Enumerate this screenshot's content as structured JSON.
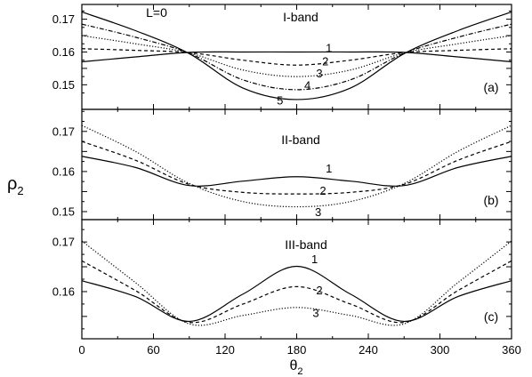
{
  "chart_data": {
    "type": "line",
    "x_axis": {
      "label": "θ",
      "label_subscript": "2",
      "range": [
        0,
        360
      ],
      "ticks": [
        0,
        60,
        120,
        180,
        240,
        300,
        360
      ],
      "tick_labels": [
        "0",
        "60",
        "120",
        "180",
        "240",
        "300",
        "360"
      ]
    },
    "y_axis": {
      "label": "ρ",
      "label_subscript": "2"
    },
    "panels": [
      {
        "panel_label": "(a)",
        "title": "I-band",
        "annotation": "L=0",
        "ylim": [
          0.1425,
          0.1745
        ],
        "y_ticks": [
          0.15,
          0.155,
          0.16,
          0.165,
          0.17
        ],
        "y_tick_labels": [
          "0.15",
          "",
          "0.16",
          "",
          "0.17"
        ],
        "series": [
          {
            "label": "1",
            "style": "solid",
            "x": [
              0,
              45,
              90,
              135,
              180,
              225,
              270,
              315,
              360
            ],
            "y": [
              0.157,
              0.1585,
              0.1599,
              0.16,
              0.16,
              0.16,
              0.1599,
              0.1585,
              0.157
            ]
          },
          {
            "label": "2",
            "style": "dashed",
            "x": [
              0,
              45,
              90,
              135,
              180,
              225,
              270,
              315,
              360
            ],
            "y": [
              0.161,
              0.1605,
              0.1598,
              0.1575,
              0.156,
              0.1575,
              0.1598,
              0.1605,
              0.161
            ]
          },
          {
            "label": "3",
            "style": "dotted",
            "x": [
              0,
              45,
              90,
              135,
              180,
              225,
              270,
              315,
              360
            ],
            "y": [
              0.165,
              0.1625,
              0.1597,
              0.1545,
              0.1525,
              0.1545,
              0.1597,
              0.1625,
              0.165
            ]
          },
          {
            "label": "4",
            "style": "dashdot",
            "x": [
              0,
              45,
              90,
              135,
              180,
              225,
              270,
              315,
              360
            ],
            "y": [
              0.1685,
              0.1645,
              0.1596,
              0.1515,
              0.1485,
              0.1515,
              0.1596,
              0.1645,
              0.1685
            ]
          },
          {
            "label": "5",
            "style": "solid",
            "x": [
              0,
              45,
              90,
              135,
              180,
              225,
              270,
              315,
              360
            ],
            "y": [
              0.1722,
              0.1665,
              0.1595,
              0.149,
              0.1455,
              0.149,
              0.1595,
              0.1665,
              0.1722
            ]
          }
        ],
        "curve_label_at": [
          {
            "label": "1",
            "x": 207,
            "y": 0.1612
          },
          {
            "label": "2",
            "x": 204,
            "y": 0.1572
          },
          {
            "label": "3",
            "x": 199,
            "y": 0.1535
          },
          {
            "label": "4",
            "x": 189,
            "y": 0.1498
          },
          {
            "label": "5",
            "x": 166,
            "y": 0.1452
          }
        ]
      },
      {
        "panel_label": "(b)",
        "title": "II-band",
        "ylim": [
          0.148,
          0.1755
        ],
        "y_ticks": [
          0.15,
          0.155,
          0.16,
          0.165,
          0.17
        ],
        "y_tick_labels": [
          "0.15",
          "",
          "0.16",
          "",
          "0.17"
        ],
        "series": [
          {
            "label": "1",
            "style": "solid",
            "x": [
              0,
              45,
              90,
              135,
              180,
              225,
              270,
              315,
              360
            ],
            "y": [
              0.1638,
              0.161,
              0.1565,
              0.1576,
              0.1587,
              0.1576,
              0.1565,
              0.161,
              0.1638
            ]
          },
          {
            "label": "2",
            "style": "dashed",
            "x": [
              0,
              45,
              90,
              135,
              180,
              225,
              270,
              315,
              360
            ],
            "y": [
              0.1675,
              0.1628,
              0.1568,
              0.1548,
              0.1544,
              0.1548,
              0.1568,
              0.1628,
              0.1675
            ]
          },
          {
            "label": "3",
            "style": "dotted",
            "x": [
              0,
              45,
              90,
              135,
              180,
              225,
              270,
              315,
              360
            ],
            "y": [
              0.1715,
              0.165,
              0.157,
              0.1525,
              0.1512,
              0.1525,
              0.157,
              0.165,
              0.1715
            ]
          }
        ],
        "curve_label_at": [
          {
            "label": "1",
            "x": 207,
            "y": 0.1608
          },
          {
            "label": "2",
            "x": 202,
            "y": 0.1552
          },
          {
            "label": "3",
            "x": 198,
            "y": 0.1499
          }
        ]
      },
      {
        "panel_label": "(c)",
        "title": "III-band",
        "ylim": [
          0.1505,
          0.1745
        ],
        "y_ticks": [
          0.155,
          0.16,
          0.165,
          0.17
        ],
        "y_tick_labels": [
          "",
          "0.16",
          "",
          "0.17"
        ],
        "series": [
          {
            "label": "1",
            "style": "solid",
            "x": [
              0,
              45,
              90,
              135,
              180,
              225,
              270,
              315,
              360
            ],
            "y": [
              0.1622,
              0.159,
              0.154,
              0.1595,
              0.1651,
              0.1595,
              0.154,
              0.159,
              0.1622
            ]
          },
          {
            "label": "2",
            "style": "dashed",
            "x": [
              0,
              45,
              90,
              135,
              180,
              225,
              270,
              315,
              360
            ],
            "y": [
              0.1662,
              0.1602,
              0.1538,
              0.1575,
              0.161,
              0.1575,
              0.1538,
              0.1602,
              0.1662
            ]
          },
          {
            "label": "3",
            "style": "dotted",
            "x": [
              0,
              45,
              90,
              135,
              180,
              225,
              270,
              315,
              360
            ],
            "y": [
              0.1702,
              0.1618,
              0.1535,
              0.1552,
              0.1568,
              0.1552,
              0.1535,
              0.1618,
              0.1702
            ]
          }
        ],
        "curve_label_at": [
          {
            "label": "1",
            "x": 195,
            "y": 0.1665
          },
          {
            "label": "2",
            "x": 199,
            "y": 0.1603
          },
          {
            "label": "3",
            "x": 196,
            "y": 0.1557
          }
        ]
      }
    ]
  }
}
